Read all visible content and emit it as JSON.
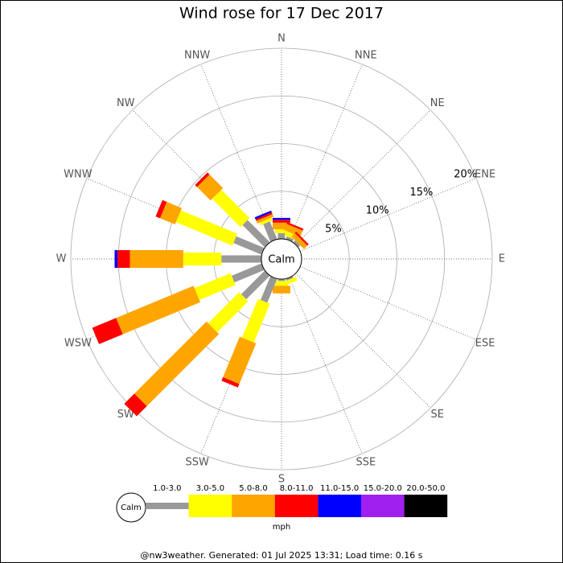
{
  "chart_data": {
    "type": "windrose",
    "title": "Wind rose for 17 Dec 2017",
    "categories": [
      "N",
      "NNE",
      "NE",
      "ENE",
      "E",
      "ESE",
      "SE",
      "SSE",
      "S",
      "SSW",
      "SW",
      "WSW",
      "W",
      "WNW",
      "NW",
      "NNW"
    ],
    "calm_label": "Calm",
    "unit_label": "mph",
    "footer": "@nw3weather. Generated: 01 Jul 2025 13:31; Load time: 0.16 s",
    "ylim": [
      0,
      20
    ],
    "yticks": [
      {
        "value": 5,
        "label": "5%"
      },
      {
        "value": 10,
        "label": "10%"
      },
      {
        "value": 15,
        "label": "15%"
      },
      {
        "value": 20,
        "label": "20%"
      }
    ],
    "series": [
      {
        "name": "1.0-3.0",
        "color": "#999999",
        "values": [
          0.6,
          0.3,
          0.3,
          0,
          0,
          0,
          0,
          0.2,
          0.2,
          2.7,
          3.5,
          3.4,
          4.2,
          3.2,
          3.3,
          2.0
        ]
      },
      {
        "name": "3.0-5.0",
        "color": "#ffff00",
        "values": [
          0.4,
          0.5,
          0,
          0,
          0,
          0,
          0,
          0.4,
          0.5,
          4.4,
          4.6,
          4.1,
          4.0,
          6.4,
          4.2,
          0.3
        ]
      },
      {
        "name": "5.0-8.0",
        "color": "#ffa500",
        "values": [
          0.7,
          0.7,
          0.5,
          0,
          0,
          0,
          0,
          0,
          0.8,
          4.6,
          10.7,
          8.8,
          5.6,
          1.7,
          2.0,
          0.3
        ]
      },
      {
        "name": "8.0-11.0",
        "color": "#ff0000",
        "values": [
          0.3,
          0.2,
          0.2,
          0,
          0,
          0,
          0,
          0,
          0,
          0.4,
          1.5,
          2.7,
          1.3,
          0.5,
          0.3,
          0.2
        ]
      },
      {
        "name": "11.0-15.0",
        "color": "#0000ff",
        "values": [
          0.2,
          0,
          0,
          0,
          0,
          0,
          0,
          0,
          0,
          0,
          0,
          0,
          0.3,
          0,
          0,
          0.2
        ]
      },
      {
        "name": "15.0-20.0",
        "color": "#a020f0",
        "values": [
          0,
          0,
          0,
          0,
          0,
          0,
          0,
          0,
          0,
          0,
          0,
          0,
          0,
          0,
          0,
          0
        ]
      },
      {
        "name": "20.0-50.0",
        "color": "#000000",
        "values": [
          0,
          0,
          0,
          0,
          0,
          0,
          0,
          0,
          0,
          0,
          0,
          0,
          0,
          0,
          0,
          0
        ]
      }
    ]
  }
}
